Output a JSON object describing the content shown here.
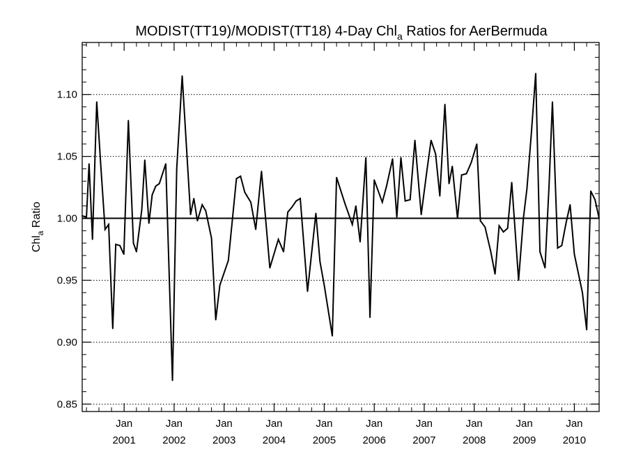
{
  "chart_data": {
    "type": "line",
    "title": {
      "main": "MODIST(TT19)/MODIST(TT18) 4-Day Chl",
      "subscript": "a",
      "suffix": " Ratios for AerBermuda"
    },
    "ylabel": {
      "main": "Chl",
      "subscript": "a",
      "suffix": " Ratio"
    },
    "xlabel": "",
    "ylim": [
      0.844,
      1.142
    ],
    "xlim": [
      "2000-03-01",
      "2010-07-01"
    ],
    "yticks": [
      0.85,
      0.9,
      0.95,
      1.0,
      1.05,
      1.1
    ],
    "ytick_labels": [
      "0.85",
      "0.90",
      "0.95",
      "1.00",
      "1.05",
      "1.10"
    ],
    "xticks": [
      {
        "date": "2001-01-01",
        "month": "Jan",
        "year": "2001"
      },
      {
        "date": "2002-01-01",
        "month": "Jan",
        "year": "2002"
      },
      {
        "date": "2003-01-01",
        "month": "Jan",
        "year": "2003"
      },
      {
        "date": "2004-01-01",
        "month": "Jan",
        "year": "2004"
      },
      {
        "date": "2005-01-01",
        "month": "Jan",
        "year": "2005"
      },
      {
        "date": "2006-01-01",
        "month": "Jan",
        "year": "2006"
      },
      {
        "date": "2007-01-01",
        "month": "Jan",
        "year": "2007"
      },
      {
        "date": "2008-01-01",
        "month": "Jan",
        "year": "2008"
      },
      {
        "date": "2009-01-01",
        "month": "Jan",
        "year": "2009"
      },
      {
        "date": "2010-01-01",
        "month": "Jan",
        "year": "2010"
      }
    ],
    "reference_line": 1.0,
    "grid": "horizontal dotted",
    "line_color": "#000000",
    "series": [
      {
        "points": [
          [
            "2000-03-01",
            1.002
          ],
          [
            "2000-04-01",
            1.001
          ],
          [
            "2000-04-20",
            1.044
          ],
          [
            "2000-05-15",
            0.983
          ],
          [
            "2000-06-15",
            1.094
          ],
          [
            "2000-07-15",
            1.042
          ],
          [
            "2000-08-15",
            0.991
          ],
          [
            "2000-09-10",
            0.995
          ],
          [
            "2000-10-10",
            0.911
          ],
          [
            "2000-11-01",
            0.979
          ],
          [
            "2000-12-01",
            0.978
          ],
          [
            "2000-12-30",
            0.971
          ],
          [
            "2001-02-01",
            1.079
          ],
          [
            "2001-03-10",
            0.98
          ],
          [
            "2001-04-01",
            0.973
          ],
          [
            "2001-05-10",
            1.007
          ],
          [
            "2001-06-01",
            1.047
          ],
          [
            "2001-07-01",
            0.996
          ],
          [
            "2001-07-25",
            1.019
          ],
          [
            "2001-08-20",
            1.026
          ],
          [
            "2001-09-15",
            1.028
          ],
          [
            "2001-11-01",
            1.044
          ],
          [
            "2001-12-20",
            0.869
          ],
          [
            "2002-01-20",
            1.04
          ],
          [
            "2002-03-01",
            1.115
          ],
          [
            "2002-05-01",
            1.003
          ],
          [
            "2002-05-25",
            1.016
          ],
          [
            "2002-06-20",
            0.998
          ],
          [
            "2002-07-25",
            1.011
          ],
          [
            "2002-08-20",
            1.006
          ],
          [
            "2002-10-01",
            0.984
          ],
          [
            "2002-11-01",
            0.918
          ],
          [
            "2002-12-01",
            0.946
          ],
          [
            "2003-02-01",
            0.966
          ],
          [
            "2003-04-01",
            1.032
          ],
          [
            "2003-05-01",
            1.034
          ],
          [
            "2003-06-01",
            1.021
          ],
          [
            "2003-07-15",
            1.013
          ],
          [
            "2003-08-20",
            0.991
          ],
          [
            "2003-10-01",
            1.038
          ],
          [
            "2003-12-01",
            0.96
          ],
          [
            "2004-02-01",
            0.983
          ],
          [
            "2004-03-10",
            0.973
          ],
          [
            "2004-04-10",
            1.005
          ],
          [
            "2004-05-10",
            1.009
          ],
          [
            "2004-06-10",
            1.014
          ],
          [
            "2004-07-10",
            1.016
          ],
          [
            "2004-09-01",
            0.941
          ],
          [
            "2004-11-01",
            1.004
          ],
          [
            "2004-12-01",
            0.965
          ],
          [
            "2005-01-01",
            0.946
          ],
          [
            "2005-03-01",
            0.905
          ],
          [
            "2005-04-01",
            1.033
          ],
          [
            "2005-06-01",
            1.012
          ],
          [
            "2005-07-25",
            0.995
          ],
          [
            "2005-08-20",
            1.01
          ],
          [
            "2005-09-20",
            0.981
          ],
          [
            "2005-11-01",
            1.049
          ],
          [
            "2005-12-01",
            0.92
          ],
          [
            "2006-01-01",
            1.031
          ],
          [
            "2006-03-01",
            1.013
          ],
          [
            "2006-04-01",
            1.026
          ],
          [
            "2006-05-15",
            1.048
          ],
          [
            "2006-06-15",
            1.001
          ],
          [
            "2006-07-15",
            1.049
          ],
          [
            "2006-08-15",
            1.014
          ],
          [
            "2006-09-20",
            1.015
          ],
          [
            "2006-10-25",
            1.063
          ],
          [
            "2006-12-10",
            1.003
          ],
          [
            "2007-01-20",
            1.038
          ],
          [
            "2007-02-20",
            1.063
          ],
          [
            "2007-03-25",
            1.052
          ],
          [
            "2007-04-25",
            1.018
          ],
          [
            "2007-06-01",
            1.092
          ],
          [
            "2007-07-01",
            1.028
          ],
          [
            "2007-07-25",
            1.042
          ],
          [
            "2007-09-01",
            1.0
          ],
          [
            "2007-10-01",
            1.035
          ],
          [
            "2007-11-05",
            1.036
          ],
          [
            "2007-12-10",
            1.045
          ],
          [
            "2008-01-20",
            1.06
          ],
          [
            "2008-02-15",
            0.998
          ],
          [
            "2008-03-20",
            0.993
          ],
          [
            "2008-05-01",
            0.973
          ],
          [
            "2008-06-01",
            0.955
          ],
          [
            "2008-07-01",
            0.994
          ],
          [
            "2008-08-01",
            0.989
          ],
          [
            "2008-09-01",
            0.992
          ],
          [
            "2008-10-01",
            1.029
          ],
          [
            "2008-11-20",
            0.95
          ],
          [
            "2008-12-25",
            1.0
          ],
          [
            "2009-01-20",
            1.024
          ],
          [
            "2009-02-20",
            1.067
          ],
          [
            "2009-03-25",
            1.117
          ],
          [
            "2009-04-25",
            0.973
          ],
          [
            "2009-06-01",
            0.96
          ],
          [
            "2009-07-01",
            1.028
          ],
          [
            "2009-07-25",
            1.094
          ],
          [
            "2009-09-01",
            0.976
          ],
          [
            "2009-10-01",
            0.978
          ],
          [
            "2009-11-01",
            0.996
          ],
          [
            "2009-12-01",
            1.011
          ],
          [
            "2010-01-01",
            0.971
          ],
          [
            "2010-03-01",
            0.94
          ],
          [
            "2010-04-01",
            0.91
          ],
          [
            "2010-05-01",
            1.022
          ],
          [
            "2010-06-01",
            1.015
          ],
          [
            "2010-07-01",
            1.0
          ]
        ]
      }
    ]
  }
}
